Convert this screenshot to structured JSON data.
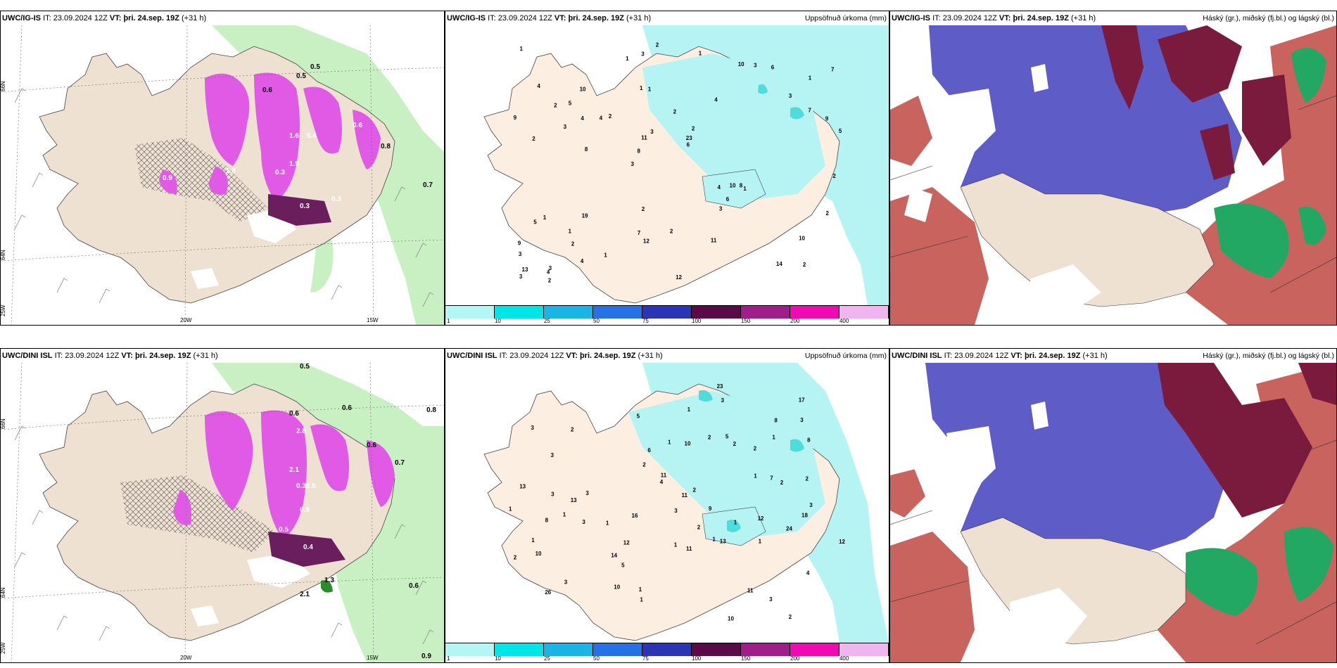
{
  "panels": [
    {
      "id": "top-left",
      "model": "UWC/IG-IS",
      "it_label": "IT:",
      "it_value": "23.09.2024 12Z",
      "vt_label": "VT:",
      "vt_value": "þri. 24.sep. 19Z",
      "lead": "(+31 h)",
      "right_title": ""
    },
    {
      "id": "top-mid",
      "model": "UWC/IG-IS",
      "it_label": "IT:",
      "it_value": "23.09.2024 12Z",
      "vt_label": "VT:",
      "vt_value": "þri. 24.sep. 19Z",
      "lead": "(+31 h)",
      "right_title": "Uppsöfnuð úrkoma (mm)"
    },
    {
      "id": "top-right",
      "model": "UWC/IG-IS",
      "it_label": "IT:",
      "it_value": "23.09.2024 12Z",
      "vt_label": "VT:",
      "vt_value": "þri. 24.sep. 19Z",
      "lead": "(+31 h)",
      "right_title": "Háský (gr.), miðský (fj.bl.) og lágský (bl.)"
    },
    {
      "id": "bottom-left",
      "model": "UWC/DINI ISL",
      "it_label": "IT:",
      "it_value": "23.09.2024 12Z",
      "vt_label": "VT:",
      "vt_value": "þri. 24.sep. 19Z",
      "lead": "(+31 h)",
      "right_title": ""
    },
    {
      "id": "bottom-mid",
      "model": "UWC/DINI ISL",
      "it_label": "IT:",
      "it_value": "23.09.2024 12Z",
      "vt_label": "VT:",
      "vt_value": "þri. 24.sep. 19Z",
      "lead": "(+31 h)",
      "right_title": "Uppsöfnuð úrkoma (mm)"
    },
    {
      "id": "bottom-right",
      "model": "UWC/DINI ISL",
      "it_label": "IT:",
      "it_value": "23.09.2024 12Z",
      "vt_label": "VT:",
      "vt_value": "þri. 24.sep. 19Z",
      "lead": "(+31 h)",
      "right_title": "Háský (gr.), miðský (fj.bl.) og lágský (bl.)"
    }
  ],
  "grid_labels": {
    "lat_66": "66N",
    "lat_64": "64N",
    "lon_25": "25W",
    "lon_20": "20W",
    "lon_15": "15W"
  },
  "colorbar": {
    "ticks": [
      "1",
      "10",
      "25",
      "50",
      "75",
      "100",
      "150",
      "200",
      "400"
    ],
    "colors": [
      "#b4f5f5",
      "#00e6e6",
      "#1ab4e6",
      "#2870e6",
      "#2a34b4",
      "#5a0a46",
      "#a01e8c",
      "#f00ab4",
      "#f0b4f0"
    ]
  },
  "precip_labels_top": [
    [
      "2",
      "2",
      "2"
    ],
    [
      "3",
      "3"
    ],
    [
      "4",
      "5"
    ],
    [
      "6"
    ],
    [
      "7"
    ],
    [
      "8"
    ],
    [
      "9"
    ],
    [
      "10"
    ],
    [
      "11"
    ],
    [
      "12"
    ],
    [
      "13"
    ],
    [
      "14"
    ],
    [
      "19"
    ],
    [
      "23"
    ]
  ],
  "precip_top": [
    "2",
    "2",
    "1",
    "3",
    "4",
    "3",
    "1",
    "2",
    "1",
    "2",
    "3",
    "2",
    "1",
    "2",
    "1",
    "4",
    "3",
    "5",
    "4",
    "7",
    "8",
    "7",
    "11",
    "10",
    "10",
    "19",
    "14",
    "10",
    "8",
    "12",
    "4",
    "3",
    "3",
    "4",
    "9",
    "23",
    "13",
    "12",
    "6",
    "5",
    "3",
    "7",
    "6",
    "11",
    "1",
    "2",
    "3",
    "2",
    "6",
    "2",
    "8",
    "9",
    "5",
    "3",
    "4",
    "1",
    "1",
    "3",
    "2",
    "2",
    "1",
    "10",
    "4",
    "9",
    "1",
    "2",
    "2"
  ],
  "precip_bottom": [
    "2",
    "1",
    "1",
    "3",
    "4",
    "3",
    "3",
    "1",
    "2",
    "1",
    "2",
    "3",
    "5",
    "5",
    "9",
    "10",
    "12",
    "11",
    "13",
    "26",
    "17",
    "10",
    "7",
    "12",
    "3",
    "3",
    "3",
    "3",
    "4",
    "3",
    "13",
    "8",
    "14",
    "5",
    "6",
    "24",
    "18",
    "11",
    "8",
    "10",
    "12",
    "11",
    "10",
    "23",
    "16",
    "13",
    "8",
    "3",
    "2",
    "1",
    "1",
    "2",
    "1",
    "2",
    "2",
    "1",
    "1",
    "11",
    "2",
    "1",
    "1",
    "1",
    "2",
    "1",
    "2",
    "1",
    "3",
    "2"
  ],
  "snow_labels_top": [
    "0.5",
    "0.6",
    "0.5",
    "0.7",
    "1.9",
    "1.6",
    "0.4",
    "0.3",
    "1.8",
    "0.3",
    "0.6",
    "0.9",
    "0.8",
    "0.3"
  ],
  "snow_labels_bottom": [
    "0.5",
    "0.6",
    "0.6",
    "0.8",
    "2.8",
    "2.1",
    "0.30.6",
    "0.9",
    "0.5",
    "0.4",
    "0.6",
    "0.7",
    "0.6",
    "0.9",
    "2.1",
    "1.3"
  ],
  "colors": {
    "land": "#efe1d2",
    "snow_area": "#ffffff",
    "green_precip": "#c9f0c3",
    "pink_precip": "#e05ae6",
    "dark_pink": "#6a1e5e",
    "cyan_precip": "#b6f4f4",
    "cyan_mid": "#50dcdc",
    "peach_land": "#fdeee2",
    "cloud_high": "#c8635e",
    "cloud_mid": "#5e5cc6",
    "cloud_low_dark": "#7a1a3c",
    "cloud_green": "#23a864"
  }
}
